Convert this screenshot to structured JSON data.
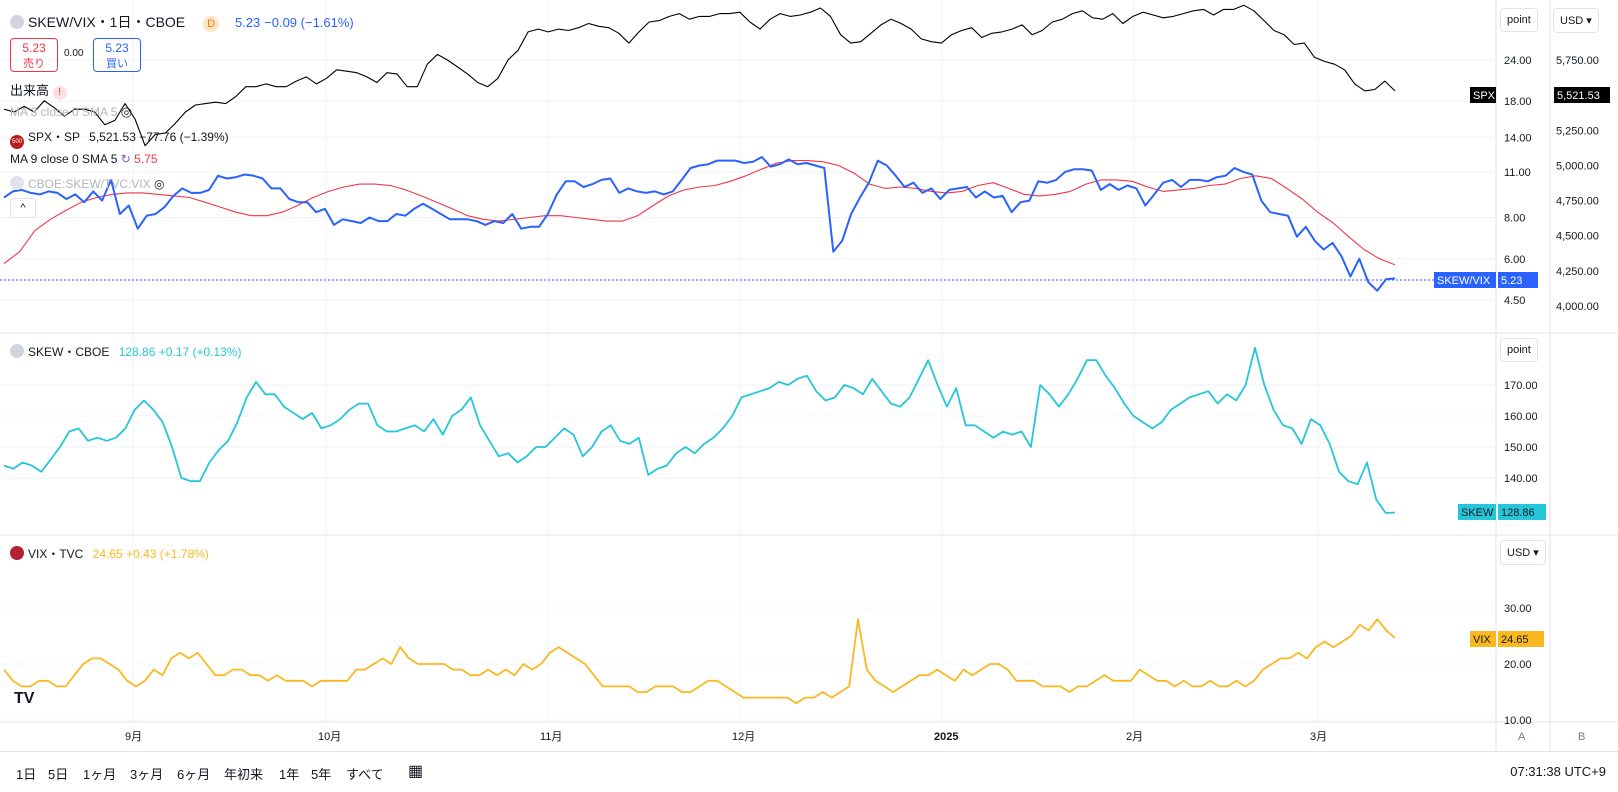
{
  "header": {
    "symbol": "SKEW/VIX・1日・CBOE",
    "interval_badge": "D",
    "last": "5.23",
    "change": "−0.09 (−1.61%)",
    "sell_price": "5.23",
    "sell_label": "売り",
    "spread": "0.00",
    "buy_price": "5.23",
    "buy_label": "買い",
    "volume_label": "出来高",
    "ma3_label": "MA 3 close 0 SMA 5",
    "spx_label": "SPX・SP",
    "spx_value": "5,521.53",
    "spx_change": "−77.76 (−1.39%)",
    "ma9_label": "MA 9 close 0 SMA 5",
    "ma9_value": "5.75",
    "ratio_label": "CBOE:SKEW/TVC:VIX"
  },
  "pane2": {
    "symbol": "SKEW・CBOE",
    "last": "128.86",
    "change": "+0.17 (+0.13%)"
  },
  "pane3": {
    "symbol": "VIX・TVC",
    "last": "24.65",
    "change": "+0.43 (+1.78%)"
  },
  "right_controls": {
    "point1": "point",
    "currency1": "USD",
    "point2": "point",
    "currency2": "USD",
    "scale_a": "A",
    "scale_b": "B"
  },
  "tags": {
    "spx": "SPX",
    "spx_value": "5,521.53",
    "ratio": "SKEW/VIX",
    "ratio_value": "5.23",
    "skew": "SKEW",
    "skew_value": "128.86",
    "vix": "VIX",
    "vix_value": "24.65"
  },
  "toolbar": {
    "ranges": [
      "1日",
      "5日",
      "1ヶ月",
      "3ヶ月",
      "6ヶ月",
      "年初来",
      "1年",
      "5年",
      "すべて"
    ],
    "clock": "07:31:38 UTC+9"
  },
  "colors": {
    "ratio": "#2962ff",
    "ma": "#f23645",
    "skew": "#26c6da",
    "vix": "#f9b81f",
    "spx": "#000000"
  },
  "chart_data": [
    {
      "type": "line",
      "title": "SKEW/VIX",
      "x_ticks": [
        "9月",
        "10月",
        "11月",
        "12月",
        "2025",
        "2月",
        "3月"
      ],
      "y_ticks_left": [
        "4.50",
        "6.00",
        "8.00",
        "11.00",
        "14.00",
        "18.00",
        "24.00"
      ],
      "y_ticks_right": [
        "4,000.00",
        "4,250.00",
        "4,500.00",
        "4,750.00",
        "5,000.00",
        "5,250.00",
        "5,500.00",
        "5,750.00"
      ],
      "log_scale": true,
      "series": [
        {
          "name": "SKEW/VIX",
          "values": [
            9.2,
            9.6,
            9.7,
            9.5,
            9.4,
            9.6,
            9.5,
            9.1,
            9.4,
            8.9,
            9.6,
            9.0,
            10.4,
            8.2,
            8.7,
            7.4,
            8.1,
            8.2,
            8.6,
            9.3,
            9.8,
            9.5,
            9.5,
            9.7,
            10.7,
            10.5,
            10.6,
            10.8,
            10.7,
            10.5,
            9.8,
            9.8,
            9.1,
            8.9,
            8.9,
            8.3,
            8.5,
            7.6,
            7.9,
            7.8,
            7.7,
            8.0,
            7.8,
            7.8,
            8.2,
            8.1,
            8.5,
            8.8,
            8.5,
            8.2,
            7.9,
            7.9,
            7.9,
            7.8,
            7.6,
            7.8,
            7.7,
            8.2,
            7.4,
            7.5,
            7.5,
            8.2,
            9.4,
            10.3,
            10.3,
            9.9,
            10.1,
            10.4,
            10.5,
            9.5,
            9.8,
            9.6,
            9.5,
            9.6,
            9.4,
            9.6,
            10.4,
            11.3,
            11.5,
            11.6,
            11.9,
            11.9,
            11.9,
            11.7,
            11.8,
            12.2,
            11.4,
            11.6,
            12.0,
            11.6,
            11.7,
            11.5,
            11.3,
            6.3,
            6.8,
            8.2,
            9.2,
            10.2,
            11.9,
            11.5,
            10.7,
            9.9,
            10.2,
            9.5,
            9.8,
            9.1,
            9.7,
            9.8,
            9.9,
            9.2,
            9.6,
            9.2,
            9.3,
            8.3,
            8.9,
            9.0,
            10.3,
            10.2,
            10.4,
            11.0,
            11.2,
            11.2,
            11.1,
            9.7,
            10.1,
            9.7,
            10.0,
            9.8,
            8.7,
            9.4,
            10.2,
            10.4,
            9.9,
            10.4,
            10.4,
            10.3,
            10.6,
            10.7,
            11.3,
            11.0,
            10.8,
            9.0,
            8.3,
            8.2,
            8.1,
            7.0,
            7.5,
            6.8,
            6.4,
            6.7,
            6.1,
            5.3,
            6.0,
            5.1,
            4.8,
            5.2,
            5.23
          ]
        },
        {
          "name": "MA",
          "values": [
            5.8,
            6.3,
            7.3,
            7.9,
            8.4,
            8.9,
            9.2,
            9.4,
            9.5,
            9.5,
            9.4,
            9.3,
            9.2,
            8.9,
            8.6,
            8.3,
            8.1,
            8.1,
            8.3,
            8.7,
            9.2,
            9.6,
            9.9,
            10.1,
            10.1,
            10.0,
            9.7,
            9.3,
            8.9,
            8.5,
            8.1,
            7.9,
            7.8,
            7.9,
            8.0,
            8.1,
            8.1,
            8.0,
            7.9,
            7.8,
            7.8,
            8.1,
            8.7,
            9.3,
            9.7,
            9.9,
            10.0,
            10.3,
            10.7,
            11.2,
            11.7,
            11.9,
            11.9,
            11.8,
            11.5,
            10.9,
            10.1,
            9.8,
            9.9,
            9.8,
            9.6,
            9.5,
            9.6,
            10.0,
            10.2,
            9.8,
            9.4,
            9.3,
            9.4,
            9.6,
            10.1,
            10.4,
            10.4,
            10.3,
            9.9,
            9.6,
            9.7,
            9.8,
            10.0,
            10.1,
            10.5,
            10.7,
            10.5,
            9.8,
            9.1,
            8.3,
            7.7,
            7.0,
            6.4,
            6.0,
            5.75
          ]
        },
        {
          "name": "SPX",
          "values": [
            5400,
            5380,
            5420,
            5380,
            5460,
            5410,
            5350,
            5400,
            5400,
            5380,
            5290,
            5320,
            5440,
            5330,
            5140,
            5220,
            5230,
            5300,
            5380,
            5430,
            5440,
            5450,
            5440,
            5490,
            5560,
            5560,
            5580,
            5560,
            5560,
            5600,
            5630,
            5580,
            5620,
            5680,
            5670,
            5660,
            5630,
            5590,
            5660,
            5650,
            5560,
            5560,
            5720,
            5790,
            5750,
            5700,
            5650,
            5590,
            5560,
            5620,
            5750,
            5820,
            5950,
            5970,
            5950,
            5970,
            5960,
            5980,
            6010,
            5990,
            5980,
            5940,
            5870,
            5950,
            6020,
            6030,
            6060,
            6080,
            6040,
            6060,
            6060,
            6080,
            6080,
            6090,
            6020,
            5970,
            6040,
            6080,
            6060,
            6070,
            6090,
            6120,
            6060,
            5930,
            5870,
            5880,
            5940,
            6000,
            6040,
            6010,
            5970,
            5900,
            5880,
            5870,
            5930,
            5960,
            5980,
            5910,
            5940,
            5950,
            5970,
            6000,
            5930,
            5960,
            6020,
            6040,
            6080,
            6100,
            6050,
            6040,
            6080,
            6010,
            6060,
            6090,
            6070,
            6050,
            6060,
            6080,
            6100,
            6110,
            6070,
            6110,
            6110,
            6140,
            6100,
            6030,
            5960,
            5930,
            5860,
            5870,
            5770,
            5740,
            5720,
            5680,
            5580,
            5530,
            5540,
            5600,
            5530
          ]
        }
      ]
    },
    {
      "type": "line",
      "title": "SKEW",
      "y_ticks": [
        "140.00",
        "150.00",
        "160.00",
        "170.00"
      ],
      "series": [
        {
          "name": "SKEW",
          "values": [
            144,
            143,
            145,
            144,
            142,
            146,
            150,
            155,
            156,
            152,
            153,
            152,
            153,
            156,
            162,
            165,
            162,
            158,
            150,
            140,
            139,
            139,
            145,
            149,
            152,
            158,
            166,
            171,
            167,
            167,
            163,
            161,
            159,
            161,
            156,
            157,
            159,
            162,
            164,
            164,
            157,
            155,
            155,
            156,
            157,
            155,
            159,
            154,
            160,
            162,
            166,
            157,
            152,
            147,
            148,
            145,
            147,
            150,
            150,
            153,
            156,
            154,
            147,
            150,
            155,
            157,
            152,
            151,
            153,
            141,
            143,
            144,
            148,
            150,
            148,
            151,
            153,
            156,
            160,
            166,
            167,
            168,
            169,
            171,
            170,
            172,
            173,
            168,
            165,
            166,
            170,
            169,
            167,
            172,
            168,
            164,
            163,
            166,
            172,
            178,
            170,
            163,
            169,
            157,
            157,
            155,
            153,
            155,
            154,
            155,
            150,
            170,
            167,
            163,
            167,
            172,
            178,
            178,
            173,
            169,
            164,
            160,
            158,
            156,
            158,
            162,
            164,
            166,
            167,
            168,
            164,
            167,
            165,
            170,
            182,
            170,
            162,
            157,
            156,
            151,
            159,
            157,
            151,
            142,
            139,
            138,
            145,
            133,
            128.7,
            128.86
          ]
        }
      ]
    },
    {
      "type": "line",
      "title": "VIX",
      "y_ticks": [
        "10.00",
        "20.00",
        "30.00"
      ],
      "series": [
        {
          "name": "VIX",
          "values": [
            19,
            17,
            16,
            16,
            17,
            17,
            16,
            16,
            18,
            20,
            21,
            21,
            20,
            19,
            17,
            16,
            17,
            19,
            18,
            21,
            22,
            21,
            22,
            20,
            18,
            18,
            19,
            19,
            18,
            18,
            17,
            18,
            17,
            17,
            17,
            16,
            17,
            17,
            17,
            17,
            19,
            19,
            20,
            21,
            20,
            23,
            21,
            20,
            20,
            20,
            20,
            19,
            19,
            18,
            18,
            19,
            18,
            19,
            18,
            20,
            19,
            20,
            22,
            23,
            22,
            21,
            20,
            18,
            16,
            16,
            16,
            16,
            15,
            15,
            16,
            16,
            16,
            15,
            15,
            16,
            17,
            17,
            16,
            15,
            14,
            14,
            14,
            14,
            14,
            14,
            13,
            14,
            14,
            15,
            14,
            15,
            16,
            28,
            19,
            17,
            16,
            15,
            16,
            17,
            18,
            18,
            19,
            18,
            17,
            19,
            18,
            19,
            20,
            20,
            19,
            17,
            17,
            17,
            16,
            16,
            16,
            15,
            16,
            16,
            17,
            18,
            17,
            17,
            17,
            19,
            18,
            17,
            17,
            16,
            17,
            16,
            16,
            17,
            16,
            16,
            17,
            16,
            17,
            19,
            20,
            21,
            21,
            22,
            21,
            23,
            24,
            23,
            24,
            25,
            27,
            26,
            28,
            26,
            24.65
          ]
        }
      ]
    }
  ]
}
